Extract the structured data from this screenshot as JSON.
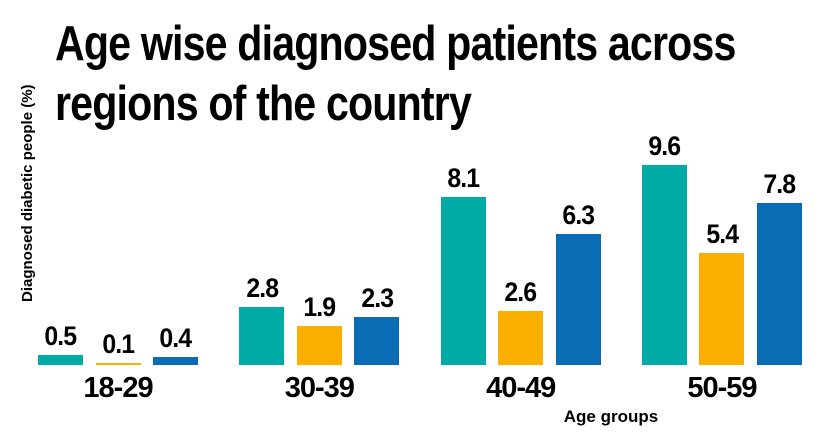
{
  "title_lines": [
    "Age wise diagnosed patients across",
    "regions of the country"
  ],
  "chart_data": {
    "type": "bar",
    "title": "Age wise diagnosed patients across regions of the country",
    "xlabel": "Age groups",
    "ylabel": "Diagnosed diabetic people (%)",
    "categories": [
      "18-29",
      "30-39",
      "40-49",
      "50-59"
    ],
    "series": [
      {
        "name": "teal-series",
        "color": "#00ABA5",
        "values": [
          0.5,
          2.8,
          8.1,
          9.6
        ]
      },
      {
        "name": "orange-series",
        "color": "#FBB000",
        "values": [
          0.1,
          1.9,
          2.6,
          5.4
        ]
      },
      {
        "name": "blue-series",
        "color": "#0A6CB5",
        "values": [
          0.4,
          2.3,
          6.3,
          7.8
        ]
      }
    ],
    "value_labels_shown": true,
    "ylim": [
      0,
      10.6
    ],
    "grid": false,
    "legend": "none",
    "axis_lines": "none"
  },
  "colors": {
    "background": "#FFFFFF",
    "text": "#000000"
  }
}
